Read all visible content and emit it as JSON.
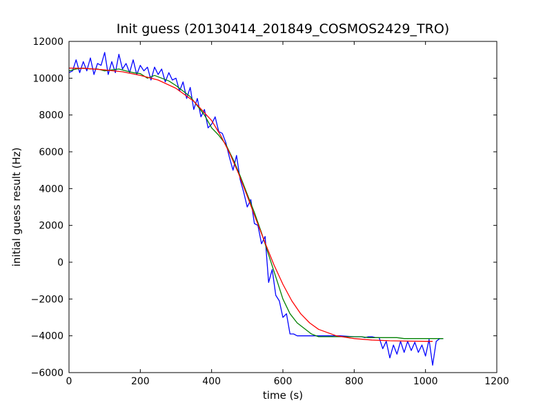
{
  "chart_data": {
    "type": "line",
    "title": "Init guess (20130414_201849_COSMOS2429_TRO)",
    "xlabel": "time (s)",
    "ylabel": "initial guess result (Hz)",
    "xlim": [
      0,
      1200
    ],
    "ylim": [
      -6000,
      12000
    ],
    "xticks": [
      0,
      200,
      400,
      600,
      800,
      1000,
      1200
    ],
    "yticks": [
      -6000,
      -4000,
      -2000,
      0,
      2000,
      4000,
      6000,
      8000,
      10000,
      12000
    ],
    "grid": false,
    "legend": null,
    "series": [
      {
        "color": "#0000ff",
        "x": [
          0,
          10,
          20,
          30,
          40,
          50,
          60,
          70,
          80,
          90,
          100,
          110,
          120,
          130,
          140,
          150,
          160,
          170,
          180,
          190,
          200,
          210,
          220,
          230,
          240,
          250,
          260,
          270,
          280,
          290,
          300,
          310,
          320,
          330,
          340,
          350,
          360,
          370,
          380,
          390,
          400,
          410,
          420,
          430,
          440,
          450,
          460,
          470,
          480,
          490,
          500,
          510,
          520,
          530,
          540,
          550,
          560,
          570,
          580,
          590,
          600,
          610,
          620,
          630,
          640,
          650,
          700,
          760,
          800,
          810,
          820,
          830,
          840,
          850,
          860,
          870,
          880,
          890,
          900,
          910,
          920,
          930,
          940,
          950,
          960,
          970,
          980,
          990,
          1000,
          1010,
          1020,
          1030,
          1040,
          1050
        ],
        "y": [
          10300,
          10400,
          11000,
          10300,
          10900,
          10400,
          11100,
          10200,
          10800,
          10700,
          11400,
          10200,
          10900,
          10300,
          11300,
          10500,
          10800,
          10300,
          11000,
          10200,
          10700,
          10400,
          10600,
          9900,
          10600,
          10200,
          10500,
          9800,
          10300,
          9900,
          10000,
          9300,
          9800,
          8900,
          9500,
          8300,
          8900,
          7900,
          8300,
          7300,
          7500,
          7900,
          7100,
          7000,
          6500,
          5700,
          5000,
          5800,
          4500,
          3800,
          3000,
          3400,
          2100,
          2000,
          1000,
          1400,
          -1100,
          -400,
          -1800,
          -2100,
          -3000,
          -2800,
          -3900,
          -3900,
          -4000,
          -4000,
          -4000,
          -4000,
          -4050,
          -4050,
          -4050,
          -4100,
          -4050,
          -4050,
          -4100,
          -4100,
          -4700,
          -4300,
          -5200,
          -4500,
          -5000,
          -4300,
          -4900,
          -4300,
          -4800,
          -4350,
          -4900,
          -4500,
          -5100,
          -4200,
          -5600,
          -4300,
          -4150,
          -4150
        ]
      },
      {
        "color": "#008000",
        "x": [
          0,
          20,
          40,
          60,
          80,
          100,
          120,
          140,
          160,
          180,
          200,
          220,
          240,
          260,
          280,
          300,
          320,
          340,
          360,
          380,
          400,
          420,
          440,
          460,
          480,
          500,
          520,
          540,
          560,
          580,
          600,
          620,
          640,
          660,
          680,
          700,
          720,
          740,
          760,
          780,
          800,
          820,
          840,
          860,
          880,
          900,
          920,
          940,
          960,
          980,
          1000,
          1020,
          1040,
          1050
        ],
        "y": [
          10400,
          10500,
          10550,
          10500,
          10500,
          10400,
          10450,
          10500,
          10400,
          10300,
          10250,
          10000,
          10150,
          10000,
          9850,
          9600,
          9300,
          9000,
          8500,
          8000,
          7300,
          6900,
          6400,
          5600,
          4700,
          3700,
          2700,
          1600,
          400,
          -800,
          -2000,
          -2800,
          -3300,
          -3600,
          -3900,
          -4050,
          -4050,
          -4050,
          -4050,
          -4050,
          -4050,
          -4050,
          -4100,
          -4100,
          -4100,
          -4100,
          -4100,
          -4150,
          -4150,
          -4150,
          -4150,
          -4150,
          -4150,
          -4150
        ]
      },
      {
        "color": "#ff0000",
        "x": [
          0,
          50,
          100,
          150,
          200,
          250,
          300,
          350,
          400,
          425,
          450,
          475,
          500,
          525,
          550,
          575,
          600,
          625,
          650,
          675,
          700,
          750,
          800,
          850,
          900,
          950,
          1000,
          1020
        ],
        "y": [
          10550,
          10530,
          10450,
          10350,
          10150,
          9900,
          9450,
          8750,
          7700,
          6900,
          5950,
          4850,
          3600,
          2300,
          1050,
          -150,
          -1200,
          -2100,
          -2800,
          -3300,
          -3650,
          -4000,
          -4150,
          -4230,
          -4270,
          -4290,
          -4300,
          -4300
        ]
      }
    ]
  }
}
